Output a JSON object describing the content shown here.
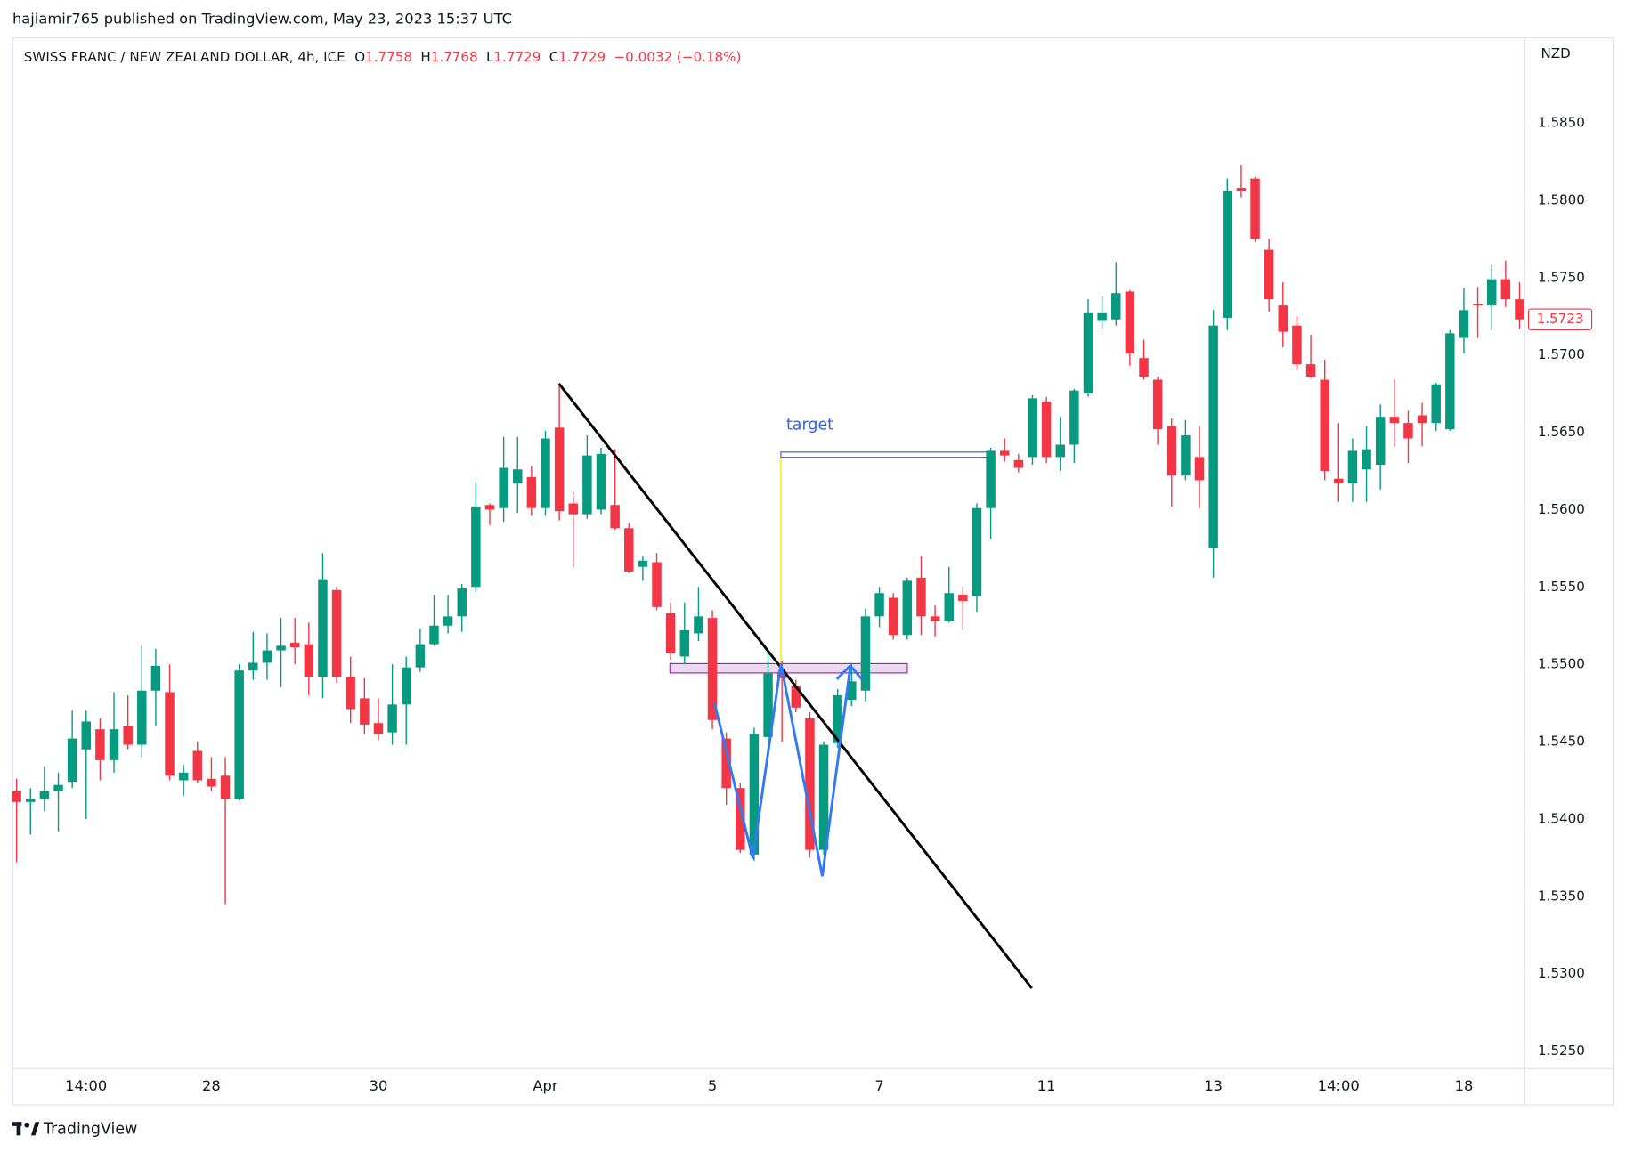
{
  "header": "hajiamir765 published on TradingView.com, May 23, 2023 15:37 UTC",
  "footer": "TradingView",
  "chart_data": {
    "type": "candlestick",
    "legend": {
      "symbol": "SWISS FRANC / NEW ZEALAND DOLLAR, 4h, ICE",
      "items": [
        {
          "label": "O",
          "value": "1.7758"
        },
        {
          "label": "H",
          "value": "1.7768"
        },
        {
          "label": "L",
          "value": "1.7729"
        },
        {
          "label": "C",
          "value": "1.7729"
        }
      ],
      "change": "−0.0032 (−0.18%)"
    },
    "currency": "NZD",
    "annotation": "target",
    "last_price_label": "1.5723",
    "up_color": "#089981",
    "down_color": "#f23645",
    "categories": [
      null,
      null,
      null,
      null,
      null,
      "14:00",
      null,
      null,
      null,
      null,
      null,
      null,
      null,
      null,
      "28",
      null,
      null,
      null,
      null,
      null,
      null,
      null,
      null,
      null,
      null,
      null,
      "30",
      null,
      null,
      null,
      null,
      null,
      null,
      null,
      null,
      null,
      null,
      null,
      "Apr",
      null,
      null,
      null,
      null,
      null,
      null,
      null,
      null,
      null,
      null,
      null,
      "5",
      null,
      null,
      null,
      null,
      null,
      null,
      null,
      null,
      null,
      null,
      null,
      "7",
      null,
      null,
      null,
      null,
      null,
      null,
      null,
      null,
      null,
      null,
      null,
      "11",
      null,
      null,
      null,
      null,
      null,
      null,
      null,
      null,
      null,
      null,
      null,
      "13",
      null,
      null,
      null,
      null,
      null,
      null,
      null,
      null,
      "14:00",
      null,
      null,
      null,
      null,
      null,
      null,
      null,
      null,
      "18",
      null,
      null,
      null,
      null
    ],
    "open": [
      1.5418,
      1.5411,
      1.5413,
      1.5418,
      1.5424,
      1.5445,
      1.5458,
      1.5438,
      1.546,
      1.5448,
      1.5483,
      1.5482,
      1.5425,
      1.5444,
      1.5426,
      1.5428,
      1.5413,
      1.5496,
      1.5501,
      1.5509,
      1.5514,
      1.5513,
      1.5492,
      1.5548,
      1.5492,
      1.5478,
      1.5462,
      1.5456,
      1.5474,
      1.5498,
      1.5513,
      1.5525,
      1.5531,
      1.555,
      1.5603,
      1.5601,
      1.5617,
      1.5621,
      1.5601,
      1.5653,
      1.5604,
      1.5597,
      1.56,
      1.5603,
      1.5588,
      1.5563,
      1.5566,
      1.5533,
      1.5505,
      1.552,
      1.553,
      1.5452,
      1.542,
      1.5377,
      1.5453,
      1.5495,
      1.5486,
      1.5465,
      1.538,
      1.5449,
      1.5477,
      1.5483,
      1.5531,
      1.5543,
      1.5519,
      1.5556,
      1.5531,
      1.5528,
      1.5545,
      1.5544,
      1.5601,
      1.5638,
      1.5632,
      1.5634,
      1.567,
      1.5634,
      1.5642,
      1.5675,
      1.5722,
      1.5723,
      1.5741,
      1.5698,
      1.5684,
      1.5654,
      1.5622,
      1.5634,
      1.5575,
      1.5724,
      1.5808,
      1.5814,
      1.5768,
      1.5732,
      1.5719,
      1.5694,
      1.5684,
      1.562,
      1.5617,
      1.5626,
      1.5629,
      1.566,
      1.5656,
      1.5661,
      1.5656,
      1.5652,
      1.5711,
      1.5733,
      1.5732,
      1.5749,
      1.5736
    ],
    "high": [
      1.5426,
      1.542,
      1.5434,
      1.543,
      1.547,
      1.547,
      1.5465,
      1.5482,
      1.548,
      1.5512,
      1.551,
      1.55,
      1.5435,
      1.545,
      1.544,
      1.544,
      1.55,
      1.5521,
      1.552,
      1.553,
      1.553,
      1.5527,
      1.5572,
      1.555,
      1.5505,
      1.5491,
      1.5478,
      1.55,
      1.5505,
      1.5523,
      1.5545,
      1.5545,
      1.5552,
      1.5618,
      1.5604,
      1.5647,
      1.5647,
      1.5628,
      1.5651,
      1.5681,
      1.5611,
      1.5648,
      1.564,
      1.5639,
      1.5591,
      1.557,
      1.5572,
      1.554,
      1.554,
      1.555,
      1.5535,
      1.5456,
      1.5423,
      1.5459,
      1.5508,
      1.5502,
      1.549,
      1.5469,
      1.545,
      1.5484,
      1.55,
      1.5536,
      1.555,
      1.5546,
      1.5556,
      1.557,
      1.5538,
      1.5563,
      1.555,
      1.5604,
      1.564,
      1.5646,
      1.5636,
      1.5674,
      1.5673,
      1.566,
      1.5678,
      1.5736,
      1.5738,
      1.576,
      1.5742,
      1.571,
      1.5686,
      1.5659,
      1.5658,
      1.5654,
      1.5729,
      1.5814,
      1.5823,
      1.5815,
      1.5775,
      1.5747,
      1.5725,
      1.5713,
      1.5697,
      1.5656,
      1.5646,
      1.5654,
      1.5668,
      1.5684,
      1.5664,
      1.5669,
      1.5682,
      1.5716,
      1.5743,
      1.5744,
      1.5758,
      1.5761,
      1.5747
    ],
    "low": [
      1.5372,
      1.539,
      1.5405,
      1.5392,
      1.542,
      1.54,
      1.5425,
      1.543,
      1.5445,
      1.544,
      1.546,
      1.5425,
      1.5415,
      1.5423,
      1.5418,
      1.5345,
      1.5412,
      1.549,
      1.549,
      1.5485,
      1.55,
      1.548,
      1.5478,
      1.5488,
      1.5462,
      1.5455,
      1.5451,
      1.5448,
      1.5448,
      1.5495,
      1.5512,
      1.552,
      1.5521,
      1.5547,
      1.559,
      1.5592,
      1.5598,
      1.5596,
      1.5596,
      1.5593,
      1.5563,
      1.5594,
      1.5597,
      1.5587,
      1.5559,
      1.5554,
      1.5535,
      1.5503,
      1.55,
      1.5515,
      1.5458,
      1.5409,
      1.5378,
      1.5373,
      1.5451,
      1.545,
      1.5469,
      1.5375,
      1.5377,
      1.5446,
      1.5473,
      1.5476,
      1.5524,
      1.5516,
      1.5516,
      1.5519,
      1.5518,
      1.5527,
      1.5522,
      1.5534,
      1.5581,
      1.5631,
      1.5624,
      1.5629,
      1.563,
      1.5625,
      1.563,
      1.5673,
      1.5717,
      1.5719,
      1.5693,
      1.5684,
      1.5642,
      1.5602,
      1.5619,
      1.5601,
      1.5556,
      1.5716,
      1.5802,
      1.5773,
      1.5728,
      1.5705,
      1.569,
      1.5685,
      1.5619,
      1.5605,
      1.5605,
      1.5605,
      1.5613,
      1.5641,
      1.563,
      1.5641,
      1.5651,
      1.5651,
      1.5701,
      1.5711,
      1.5716,
      1.5731,
      1.5717
    ],
    "close": [
      1.5411,
      1.5413,
      1.5418,
      1.5422,
      1.5452,
      1.5463,
      1.5438,
      1.5458,
      1.5448,
      1.5483,
      1.5499,
      1.5428,
      1.543,
      1.5425,
      1.5421,
      1.5413,
      1.5496,
      1.5501,
      1.5509,
      1.5512,
      1.5511,
      1.5492,
      1.5555,
      1.5492,
      1.5471,
      1.5461,
      1.5455,
      1.5474,
      1.5498,
      1.5513,
      1.5525,
      1.5531,
      1.5549,
      1.5602,
      1.56,
      1.5627,
      1.5626,
      1.5601,
      1.5646,
      1.5599,
      1.5597,
      1.5635,
      1.5636,
      1.5588,
      1.556,
      1.5567,
      1.5537,
      1.5507,
      1.5522,
      1.5531,
      1.5464,
      1.542,
      1.538,
      1.5455,
      1.5494,
      1.5491,
      1.5472,
      1.538,
      1.5448,
      1.548,
      1.5489,
      1.5531,
      1.5546,
      1.5519,
      1.5554,
      1.5531,
      1.5528,
      1.5546,
      1.5541,
      1.5601,
      1.5638,
      1.5635,
      1.5627,
      1.5672,
      1.5634,
      1.5642,
      1.5677,
      1.5727,
      1.5727,
      1.574,
      1.5701,
      1.5686,
      1.5652,
      1.5622,
      1.5648,
      1.5619,
      1.5719,
      1.5806,
      1.5806,
      1.5775,
      1.5736,
      1.5715,
      1.5694,
      1.5686,
      1.5625,
      1.5617,
      1.5638,
      1.5639,
      1.566,
      1.5656,
      1.5646,
      1.5656,
      1.5681,
      1.5714,
      1.5729,
      1.5732,
      1.5749,
      1.5736,
      1.5723
    ],
    "ylim": [
      1.5239,
      1.5904
    ],
    "yticks": [
      {
        "value": 1.525,
        "label": "1.5250"
      },
      {
        "value": 1.53,
        "label": "1.5300"
      },
      {
        "value": 1.535,
        "label": "1.5350"
      },
      {
        "value": 1.54,
        "label": "1.5400"
      },
      {
        "value": 1.545,
        "label": "1.5450"
      },
      {
        "value": 1.55,
        "label": "1.5500"
      },
      {
        "value": 1.555,
        "label": "1.5550"
      },
      {
        "value": 1.56,
        "label": "1.5600"
      },
      {
        "value": 1.565,
        "label": "1.5650"
      },
      {
        "value": 1.57,
        "label": "1.5700"
      },
      {
        "value": 1.575,
        "label": "1.5750"
      },
      {
        "value": 1.58,
        "label": "1.5800"
      },
      {
        "value": 1.585,
        "label": "1.5850"
      }
    ]
  }
}
